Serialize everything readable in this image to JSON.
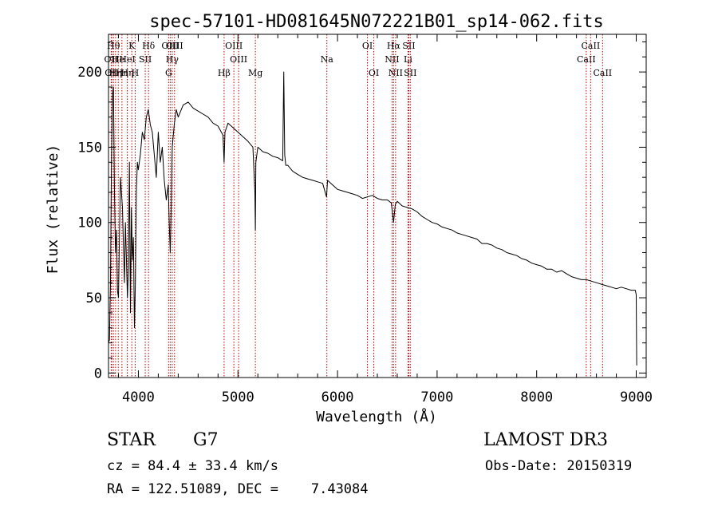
{
  "chart_data": {
    "type": "line",
    "title": "spec-57101-HD081645N072221B01_sp14-062.fits",
    "xlabel": "Wavelength (Å)",
    "ylabel": "Flux (relative)",
    "xlim": [
      3700,
      9100
    ],
    "ylim": [
      -3,
      225
    ],
    "x_ticks": [
      4000,
      5000,
      6000,
      7000,
      8000,
      9000
    ],
    "y_ticks": [
      0,
      50,
      100,
      150,
      200
    ],
    "grid": false,
    "line_color": "#000000",
    "marker_color": "#c00000",
    "series": [
      {
        "name": "flux",
        "x": [
          3700,
          3710,
          3720,
          3730,
          3740,
          3750,
          3760,
          3770,
          3780,
          3790,
          3800,
          3810,
          3820,
          3830,
          3840,
          3850,
          3860,
          3870,
          3880,
          3890,
          3900,
          3910,
          3920,
          3930,
          3940,
          3950,
          3960,
          3970,
          3980,
          3990,
          4000,
          4020,
          4040,
          4060,
          4080,
          4100,
          4120,
          4140,
          4160,
          4180,
          4200,
          4220,
          4240,
          4260,
          4280,
          4300,
          4310,
          4320,
          4330,
          4340,
          4360,
          4380,
          4400,
          4450,
          4500,
          4550,
          4600,
          4650,
          4700,
          4750,
          4800,
          4850,
          4861,
          4870,
          4900,
          4950,
          5000,
          5050,
          5100,
          5150,
          5170,
          5175,
          5180,
          5200,
          5250,
          5300,
          5350,
          5400,
          5450,
          5460,
          5470,
          5480,
          5500,
          5550,
          5600,
          5650,
          5700,
          5750,
          5800,
          5850,
          5890,
          5900,
          5950,
          6000,
          6050,
          6100,
          6150,
          6200,
          6250,
          6300,
          6350,
          6400,
          6450,
          6500,
          6540,
          6563,
          6580,
          6600,
          6650,
          6700,
          6750,
          6800,
          6850,
          6900,
          6950,
          7000,
          7050,
          7100,
          7150,
          7200,
          7250,
          7300,
          7350,
          7400,
          7450,
          7500,
          7550,
          7600,
          7650,
          7700,
          7750,
          7800,
          7850,
          7900,
          7950,
          8000,
          8050,
          8100,
          8150,
          8200,
          8250,
          8300,
          8350,
          8400,
          8450,
          8500,
          8550,
          8600,
          8650,
          8700,
          8750,
          8800,
          8850,
          8900,
          8950,
          8990,
          9000,
          9005
        ],
        "y": [
          20,
          22,
          60,
          140,
          185,
          190,
          120,
          80,
          95,
          55,
          50,
          90,
          130,
          120,
          110,
          85,
          60,
          100,
          75,
          50,
          70,
          140,
          40,
          110,
          75,
          90,
          30,
          60,
          120,
          140,
          135,
          145,
          160,
          155,
          170,
          175,
          165,
          160,
          145,
          130,
          160,
          140,
          150,
          128,
          115,
          125,
          100,
          80,
          110,
          150,
          165,
          175,
          170,
          178,
          180,
          176,
          174,
          172,
          170,
          166,
          164,
          158,
          140,
          160,
          166,
          163,
          160,
          157,
          154,
          150,
          120,
          95,
          140,
          150,
          147,
          146,
          144,
          143,
          141,
          200,
          145,
          138,
          138,
          134,
          132,
          130,
          129,
          128,
          127,
          126,
          117,
          128,
          125,
          122,
          121,
          120,
          119,
          118,
          116,
          117,
          118,
          116,
          115,
          115,
          113,
          100,
          112,
          114,
          111,
          110,
          109,
          107,
          104,
          102,
          100,
          99,
          97,
          96,
          95,
          93,
          92,
          91,
          90,
          89,
          86,
          86,
          85,
          83,
          82,
          80,
          79,
          78,
          76,
          75,
          73,
          72,
          71,
          69,
          69,
          67,
          68,
          66,
          64,
          63,
          62,
          62,
          61,
          60,
          59,
          58,
          57,
          56,
          57,
          56,
          55,
          55,
          52,
          5
        ]
      }
    ],
    "line_markers": [
      {
        "wavelength": 3727,
        "label": "OII",
        "row": 1
      },
      {
        "wavelength": 3733,
        "label": "OII",
        "row": 2
      },
      {
        "wavelength": 3750,
        "label": "Hθ",
        "row": 0
      },
      {
        "wavelength": 3771,
        "label": "Hη",
        "row": 2
      },
      {
        "wavelength": 3798,
        "label": "He",
        "row": 1
      },
      {
        "wavelength": 3835,
        "label": "Hη",
        "row": 2
      },
      {
        "wavelength": 3889,
        "label": "HeI",
        "row": 1
      },
      {
        "wavelength": 3889,
        "label": "Hη",
        "row": 2
      },
      {
        "wavelength": 3934,
        "label": "K",
        "row": 0
      },
      {
        "wavelength": 3968,
        "label": "H",
        "row": 2
      },
      {
        "wavelength": 4069,
        "label": "SII",
        "row": 1
      },
      {
        "wavelength": 4102,
        "label": "Hδ",
        "row": 0
      },
      {
        "wavelength": 4304,
        "label": "G",
        "row": 2
      },
      {
        "wavelength": 4320,
        "label": "OIII",
        "row": 0
      },
      {
        "wavelength": 4340,
        "label": "Hγ",
        "row": 1
      },
      {
        "wavelength": 4363,
        "label": "OIII",
        "row": 0
      },
      {
        "wavelength": 4861,
        "label": "Hβ",
        "row": 2
      },
      {
        "wavelength": 4959,
        "label": "OIII",
        "row": 0
      },
      {
        "wavelength": 5007,
        "label": "OIII",
        "row": 1
      },
      {
        "wavelength": 5175,
        "label": "Mg",
        "row": 2
      },
      {
        "wavelength": 5893,
        "label": "Na",
        "row": 1
      },
      {
        "wavelength": 6300,
        "label": "OI",
        "row": 0
      },
      {
        "wavelength": 6364,
        "label": "OI",
        "row": 2
      },
      {
        "wavelength": 6548,
        "label": "NII",
        "row": 1
      },
      {
        "wavelength": 6563,
        "label": "Hα",
        "row": 0
      },
      {
        "wavelength": 6583,
        "label": "NII",
        "row": 2
      },
      {
        "wavelength": 6708,
        "label": "Li",
        "row": 1
      },
      {
        "wavelength": 6716,
        "label": "SII",
        "row": 0
      },
      {
        "wavelength": 6731,
        "label": "SII",
        "row": 2
      },
      {
        "wavelength": 8498,
        "label": "CaII",
        "row": 1
      },
      {
        "wavelength": 8542,
        "label": "CaII",
        "row": 0
      },
      {
        "wavelength": 8662,
        "label": "CaII",
        "row": 2
      }
    ]
  },
  "info": {
    "object_class": "STAR",
    "subclass": "G7",
    "redshift_line": "cz = 84.4 ± 33.4 km/s",
    "coords_line": "RA = 122.51089, DEC =    7.43084",
    "survey": "LAMOST DR3",
    "obs_date_line": "Obs-Date: 20150319"
  }
}
